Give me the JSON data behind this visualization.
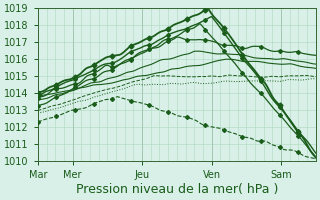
{
  "title": "",
  "xlabel": "Pression niveau de la mer( hPa )",
  "ylabel": "",
  "bg_color": "#d8f0e8",
  "plot_bg_color": "#d8f0e8",
  "grid_color": "#b0d8c0",
  "line_color": "#1a5c1a",
  "axis_color": "#336633",
  "text_color": "#1a5c1a",
  "ylim": [
    1010,
    1019
  ],
  "yticks": [
    1010,
    1011,
    1012,
    1013,
    1014,
    1015,
    1016,
    1017,
    1018,
    1019
  ],
  "day_labels": [
    "Mar",
    "Mer",
    "Jeu",
    "Ven",
    "Sam"
  ],
  "day_positions": [
    0,
    24,
    72,
    120,
    168
  ],
  "total_hours": 192,
  "xlabel_fontsize": 9,
  "tick_fontsize": 7
}
